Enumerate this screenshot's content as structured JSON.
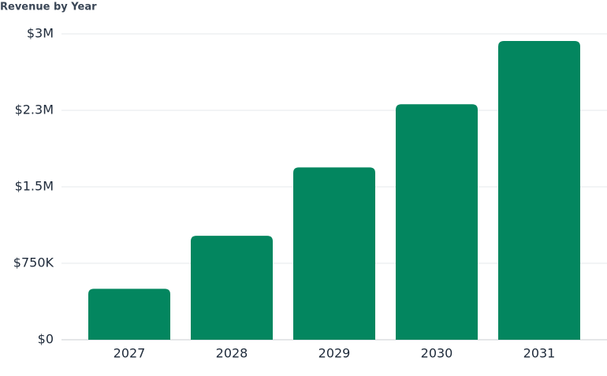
{
  "chart_data": {
    "type": "bar",
    "title": "Revenue by Year",
    "categories": [
      "2027",
      "2028",
      "2029",
      "2030",
      "2031"
    ],
    "values": [
      500000,
      1020000,
      1690000,
      2310000,
      2930000
    ],
    "color": "#03865f",
    "ylim": [
      0,
      3000000
    ],
    "yticks": [
      {
        "value": 0,
        "label": "$0"
      },
      {
        "value": 750000,
        "label": "$750K"
      },
      {
        "value": 1500000,
        "label": "$1.5M"
      },
      {
        "value": 2250000,
        "label": "$2.3M"
      },
      {
        "value": 3000000,
        "label": "$3M"
      }
    ],
    "grid": true
  }
}
